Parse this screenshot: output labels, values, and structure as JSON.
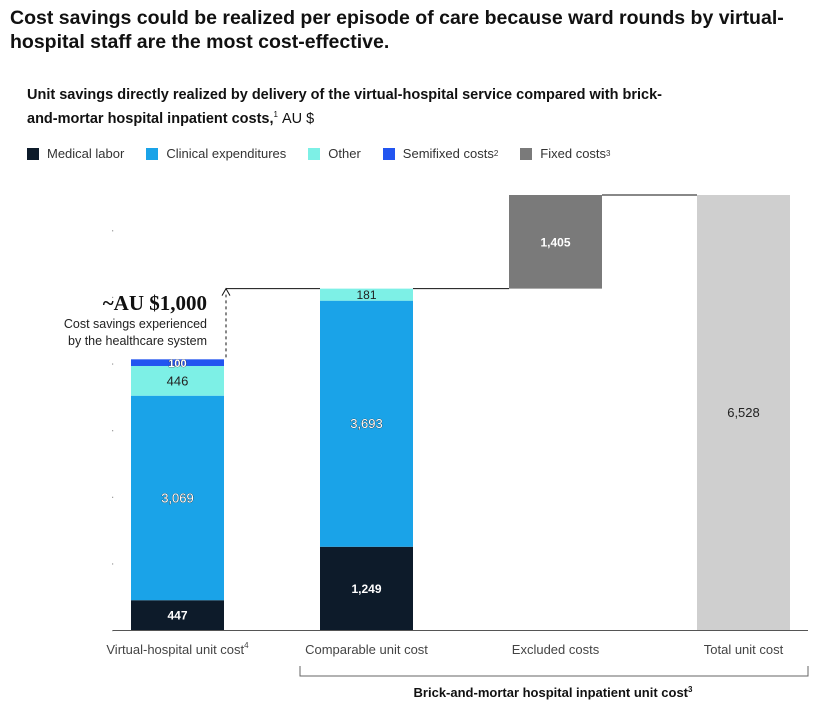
{
  "headline": "Cost savings could be realized per episode of care because ward rounds by virtual-hospital staff are the most cost-effective.",
  "subtitle": {
    "text": "Unit savings directly realized by delivery of the virtual-hospital service compared with brick-and-mortar hospital inpatient costs,",
    "footnote": "1",
    "unit": "AU $"
  },
  "colors": {
    "medical_labor": "#0d1b2a",
    "clinical": "#1aa3e8",
    "other": "#7df0e6",
    "semifixed": "#2255f0",
    "fixed": "#7a7a7a",
    "total": "#cfcfcf"
  },
  "legend": [
    {
      "label": "Medical labor",
      "sup": "",
      "color_key": "medical_labor"
    },
    {
      "label": "Clinical expenditures",
      "sup": "",
      "color_key": "clinical"
    },
    {
      "label": "Other",
      "sup": "",
      "color_key": "other"
    },
    {
      "label": "Semifixed costs",
      "sup": "2",
      "color_key": "semifixed"
    },
    {
      "label": "Fixed costs",
      "sup": "3",
      "color_key": "fixed"
    }
  ],
  "annotation": {
    "value": "~AU $1,000",
    "line1": "Cost savings experienced",
    "line2": "by the healthcare system"
  },
  "bracket_label": "Brick-and-mortar hospital inpatient unit cost",
  "bracket_sup": "3",
  "chart_data": {
    "type": "bar",
    "subtype": "stacked-waterfall",
    "categories": [
      "Virtual-hospital unit cost",
      "Comparable unit cost",
      "Excluded costs",
      "Total unit cost"
    ],
    "category_sups": [
      "4",
      "",
      "",
      ""
    ],
    "bars": [
      {
        "category": "Virtual-hospital unit cost",
        "segments": [
          {
            "series": "Medical labor",
            "value": 447,
            "label": "447",
            "color_key": "medical_labor"
          },
          {
            "series": "Clinical expenditures",
            "value": 3069,
            "label": "3,069",
            "color_key": "clinical"
          },
          {
            "series": "Other",
            "value": 446,
            "label": "446",
            "color_key": "other"
          },
          {
            "series": "Semifixed costs",
            "value": 100,
            "label": "100",
            "color_key": "semifixed"
          }
        ]
      },
      {
        "category": "Comparable unit cost",
        "segments": [
          {
            "series": "Medical labor",
            "value": 1249,
            "label": "1,249",
            "color_key": "medical_labor"
          },
          {
            "series": "Clinical expenditures",
            "value": 3693,
            "label": "3,693",
            "color_key": "clinical"
          },
          {
            "series": "Other",
            "value": 181,
            "label": "181",
            "color_key": "other"
          }
        ]
      },
      {
        "category": "Excluded costs",
        "base": 5123,
        "segments": [
          {
            "series": "Fixed costs",
            "value": 1405,
            "label": "1,405",
            "color_key": "fixed"
          }
        ]
      },
      {
        "category": "Total unit cost",
        "segments": [
          {
            "series": "Total",
            "value": 6528,
            "label": "6,528",
            "color_key": "total"
          }
        ]
      }
    ],
    "ylim": [
      0,
      6528
    ],
    "grid": false
  }
}
